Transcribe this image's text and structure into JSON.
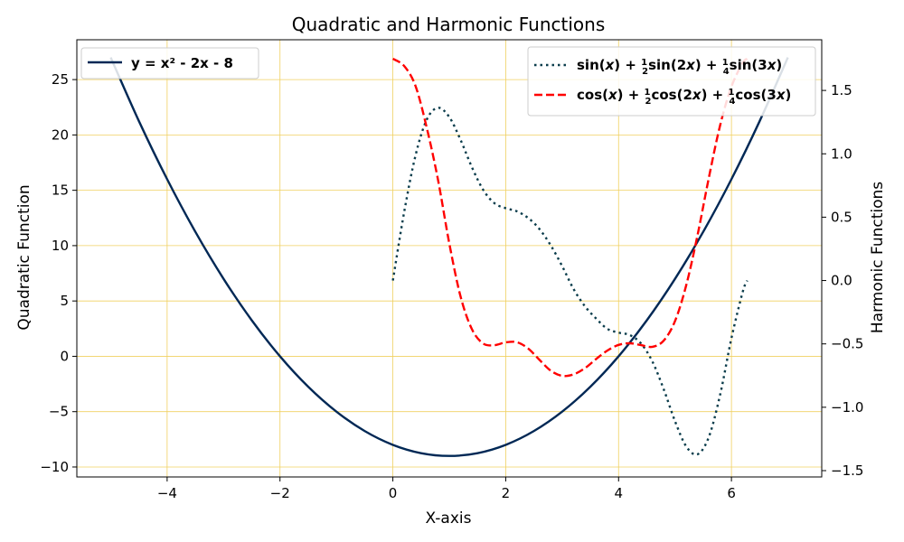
{
  "chart_data": {
    "type": "line",
    "title": "Quadratic and Harmonic Functions",
    "xlabel": "X-axis",
    "ylabel_left": "Quadratic Function",
    "ylabel_right": "Harmonic Functions",
    "xlim": [
      -5.6,
      7.6
    ],
    "ylim_left": [
      -10.9,
      28.6
    ],
    "ylim_right": [
      -1.55,
      1.9
    ],
    "x_ticks": [
      -4,
      -2,
      0,
      2,
      4,
      6
    ],
    "x_tick_labels": [
      "−4",
      "−2",
      "0",
      "2",
      "4",
      "6"
    ],
    "y_left_ticks": [
      -10,
      -5,
      0,
      5,
      10,
      15,
      20,
      25
    ],
    "y_left_tick_labels": [
      "−10",
      "−5",
      "0",
      "5",
      "10",
      "15",
      "20",
      "25"
    ],
    "y_right_ticks": [
      -1.5,
      -1.0,
      -0.5,
      0.0,
      0.5,
      1.0,
      1.5
    ],
    "y_right_tick_labels": [
      "−1.5",
      "−1.0",
      "−0.5",
      "0.0",
      "0.5",
      "1.0",
      "1.5"
    ],
    "grid": true,
    "grid_color": "#f0d060",
    "series": [
      {
        "name": "y = x² - 2x - 8",
        "axis": "left",
        "style": "solid",
        "color": "#002855",
        "x": [
          -5.0,
          -4.5,
          -4.0,
          -3.5,
          -3.0,
          -2.5,
          -2.0,
          -1.5,
          -1.0,
          -0.5,
          0.0,
          0.5,
          1.0,
          1.5,
          2.0,
          2.5,
          3.0,
          3.5,
          4.0,
          4.5,
          5.0,
          5.5,
          6.0,
          6.5,
          7.0
        ],
        "y": [
          27.0,
          21.25,
          16.0,
          11.25,
          7.0,
          3.25,
          0.0,
          -2.75,
          -5.0,
          -6.75,
          -8.0,
          -8.75,
          -9.0,
          -8.75,
          -8.0,
          -6.75,
          -5.0,
          -2.75,
          0.0,
          3.25,
          7.0,
          11.25,
          16.0,
          21.25,
          27.0
        ]
      },
      {
        "name": "sin(x) + ½sin(2x) + ¼sin(3x)",
        "axis": "right",
        "style": "dotted",
        "color": "#0b3d4c",
        "x": [
          0.0,
          0.2,
          0.4,
          0.6,
          0.8,
          1.0,
          1.2,
          1.4,
          1.6,
          1.8,
          2.0,
          2.2,
          2.4,
          2.6,
          2.8,
          3.0,
          3.2,
          3.4,
          3.6,
          3.8,
          4.0,
          4.2,
          4.4,
          4.6,
          4.8,
          5.0,
          5.2,
          5.4,
          5.6,
          5.8,
          6.0,
          6.2,
          6.28
        ],
        "y": [
          0.0,
          0.539,
          0.984,
          1.269,
          1.363,
          1.29,
          1.11,
          0.895,
          0.716,
          0.61,
          0.571,
          0.546,
          0.493,
          0.405,
          0.276,
          0.114,
          -0.065,
          -0.201,
          -0.299,
          -0.381,
          -0.411,
          -0.43,
          -0.498,
          -0.64,
          -0.858,
          -1.11,
          -1.31,
          -1.371,
          -1.234,
          -0.9,
          -0.455,
          -0.089,
          0.0
        ]
      },
      {
        "name": "cos(x) + ½cos(2x) + ¼cos(3x)",
        "axis": "right",
        "style": "dashed",
        "color": "#ff0000",
        "x": [
          0.0,
          0.2,
          0.4,
          0.6,
          0.8,
          1.0,
          1.2,
          1.4,
          1.6,
          1.8,
          2.0,
          2.2,
          2.4,
          2.6,
          2.8,
          3.0,
          3.2,
          3.4,
          3.6,
          3.8,
          4.0,
          4.2,
          4.4,
          4.6,
          4.8,
          5.0,
          5.2,
          5.4,
          5.6,
          5.8,
          6.0,
          6.2,
          6.28
        ],
        "y": [
          1.75,
          1.693,
          1.537,
          1.207,
          0.795,
          0.293,
          -0.126,
          -0.383,
          -0.497,
          -0.51,
          -0.488,
          -0.487,
          -0.537,
          -0.627,
          -0.712,
          -0.752,
          -0.741,
          -0.693,
          -0.62,
          -0.553,
          -0.508,
          -0.495,
          -0.51,
          -0.523,
          -0.474,
          -0.32,
          -0.035,
          0.36,
          0.812,
          1.226,
          1.53,
          1.717,
          1.75
        ]
      }
    ],
    "legends": [
      {
        "position": "upper-left",
        "entries": [
          "y = x² - 2x - 8"
        ]
      },
      {
        "position": "upper-right",
        "entries": [
          "sin(x) + ½sin(2x) + ¼sin(3x)",
          "cos(x) + ½cos(2x) + ¼cos(3x)"
        ]
      }
    ]
  }
}
